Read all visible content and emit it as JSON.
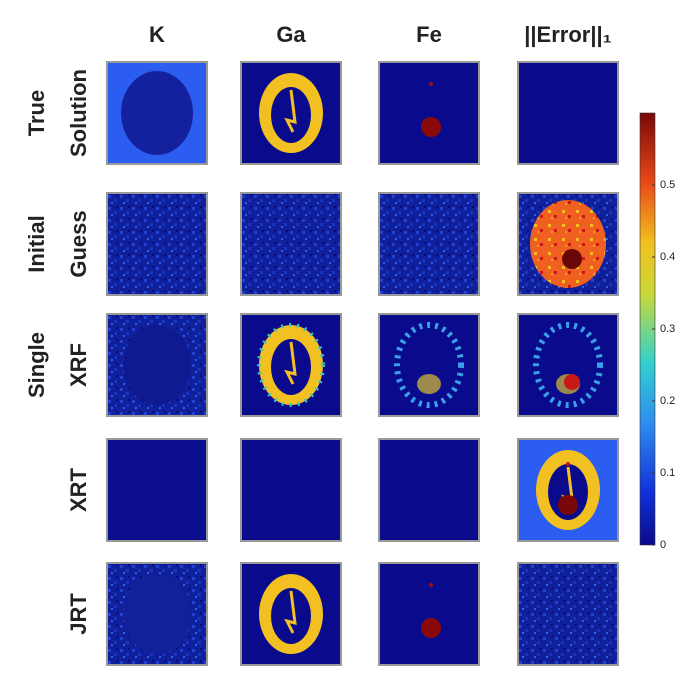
{
  "columns": [
    "K",
    "Ga",
    "Fe",
    "||Error||₁"
  ],
  "rows": [
    [
      "True",
      "Solution"
    ],
    [
      "Initial",
      "Guess"
    ],
    [
      "Single",
      "XRF"
    ],
    [
      "XRT"
    ],
    [
      "JRT"
    ]
  ],
  "colorbar": {
    "range": [
      0,
      0.6
    ],
    "ticks": [
      0,
      0.1,
      0.2,
      0.3,
      0.4,
      0.5
    ]
  }
}
